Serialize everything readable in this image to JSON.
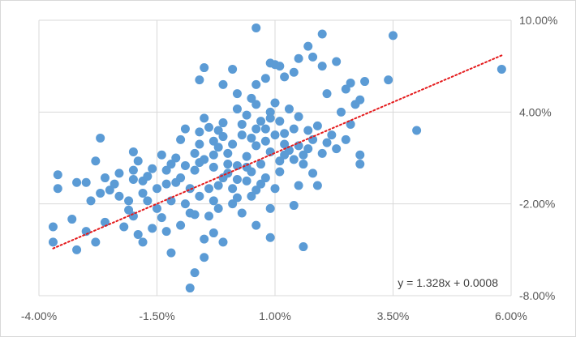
{
  "chart_data": {
    "type": "scatter",
    "title": "",
    "xlabel": "",
    "ylabel": "",
    "xlim": [
      -4.0,
      6.0
    ],
    "ylim": [
      -8.0,
      10.0
    ],
    "x_ticks": [
      -4.0,
      -1.5,
      1.0,
      3.5,
      6.0
    ],
    "y_ticks": [
      -8.0,
      -2.0,
      4.0,
      10.0
    ],
    "x_tick_labels": [
      "-4.00%",
      "-1.50%",
      "1.00%",
      "3.50%",
      "6.00%"
    ],
    "y_tick_labels": [
      "-8.00%",
      "-2.00%",
      "4.00%",
      "10.00%"
    ],
    "y_axis_position": "right",
    "grid": true,
    "legend": "none",
    "marker_color": "#5b9bd5",
    "trendline": {
      "slope": 1.328,
      "intercept": 0.0008,
      "style": "dotted",
      "color": "#e41a1c",
      "x_range": [
        -3.7,
        5.8
      ],
      "equation_label": "y = 1.328x + 0.0008"
    },
    "points": [
      [
        0.6,
        9.5
      ],
      [
        3.5,
        9.0
      ],
      [
        2.0,
        9.1
      ],
      [
        1.7,
        8.3
      ],
      [
        5.8,
        6.8
      ],
      [
        3.4,
        6.1
      ],
      [
        1.5,
        7.5
      ],
      [
        1.8,
        7.6
      ],
      [
        2.3,
        7.3
      ],
      [
        1.1,
        7.0
      ],
      [
        0.9,
        7.2
      ],
      [
        1.0,
        7.1
      ],
      [
        1.4,
        6.6
      ],
      [
        2.0,
        7.0
      ],
      [
        0.1,
        6.8
      ],
      [
        -0.5,
        6.9
      ],
      [
        0.6,
        5.8
      ],
      [
        1.2,
        6.3
      ],
      [
        -0.1,
        5.8
      ],
      [
        0.8,
        6.2
      ],
      [
        -0.6,
        6.1
      ],
      [
        2.6,
        5.9
      ],
      [
        2.9,
        6.0
      ],
      [
        2.1,
        5.2
      ],
      [
        2.5,
        5.5
      ],
      [
        4.0,
        2.8
      ],
      [
        2.8,
        4.8
      ],
      [
        2.7,
        4.5
      ],
      [
        2.4,
        4.0
      ],
      [
        2.6,
        3.2
      ],
      [
        2.5,
        2.2
      ],
      [
        2.2,
        2.5
      ],
      [
        2.8,
        1.2
      ],
      [
        2.0,
        1.3
      ],
      [
        2.8,
        0.6
      ],
      [
        1.8,
        0.0
      ],
      [
        1.9,
        -0.8
      ],
      [
        1.5,
        -0.8
      ],
      [
        1.4,
        -2.1
      ],
      [
        1.6,
        -4.8
      ],
      [
        0.9,
        -2.3
      ],
      [
        0.5,
        -1.5
      ],
      [
        0.1,
        -2.0
      ],
      [
        -0.2,
        -2.3
      ],
      [
        0.6,
        -3.4
      ],
      [
        0.9,
        -4.2
      ],
      [
        -0.5,
        -4.3
      ],
      [
        -0.1,
        -4.5
      ],
      [
        -0.3,
        -3.9
      ],
      [
        -0.5,
        -5.5
      ],
      [
        -0.7,
        -6.5
      ],
      [
        -0.8,
        -7.5
      ],
      [
        -1.2,
        -5.2
      ],
      [
        -1.3,
        -3.8
      ],
      [
        -1.0,
        -3.4
      ],
      [
        -0.7,
        -2.7
      ],
      [
        -1.4,
        -2.9
      ],
      [
        -1.6,
        -3.6
      ],
      [
        -1.8,
        -4.5
      ],
      [
        -1.9,
        -4.0
      ],
      [
        -2.0,
        -2.8
      ],
      [
        -2.2,
        -3.5
      ],
      [
        -2.6,
        -3.2
      ],
      [
        -2.8,
        -4.5
      ],
      [
        -3.2,
        -5.0
      ],
      [
        -3.0,
        -3.8
      ],
      [
        -3.3,
        -3.0
      ],
      [
        -3.7,
        -4.5
      ],
      [
        -3.7,
        -3.5
      ],
      [
        -2.9,
        -1.8
      ],
      [
        -2.5,
        -1.1
      ],
      [
        -3.0,
        -0.6
      ],
      [
        -3.2,
        -0.6
      ],
      [
        -3.6,
        -1.0
      ],
      [
        -3.6,
        -0.1
      ],
      [
        -2.7,
        -1.3
      ],
      [
        -2.3,
        -1.5
      ],
      [
        -2.1,
        -1.8
      ],
      [
        -2.4,
        -0.7
      ],
      [
        -2.6,
        -0.3
      ],
      [
        -2.0,
        -0.4
      ],
      [
        -2.8,
        0.8
      ],
      [
        -2.3,
        -0.0
      ],
      [
        -2.7,
        2.3
      ],
      [
        -2.0,
        1.4
      ],
      [
        -1.9,
        0.8
      ],
      [
        -2.0,
        0.2
      ],
      [
        -1.8,
        -0.5
      ],
      [
        -1.5,
        -1.0
      ],
      [
        -1.3,
        0.2
      ],
      [
        -1.1,
        1.0
      ],
      [
        -1.1,
        -0.6
      ],
      [
        -0.9,
        0.5
      ],
      [
        -0.7,
        1.3
      ],
      [
        -0.6,
        1.9
      ],
      [
        -0.6,
        2.7
      ],
      [
        -0.9,
        2.9
      ],
      [
        -0.4,
        3.0
      ],
      [
        -0.3,
        2.1
      ],
      [
        -0.1,
        3.3
      ],
      [
        0.2,
        4.2
      ],
      [
        0.4,
        3.8
      ],
      [
        0.5,
        4.9
      ],
      [
        0.2,
        5.2
      ],
      [
        0.6,
        4.5
      ],
      [
        0.9,
        4.0
      ],
      [
        1.1,
        3.4
      ],
      [
        1.3,
        4.2
      ],
      [
        1.5,
        3.7
      ],
      [
        1.7,
        2.8
      ],
      [
        1.2,
        2.6
      ],
      [
        0.8,
        2.9
      ],
      [
        0.6,
        1.8
      ],
      [
        0.3,
        2.5
      ],
      [
        0.0,
        1.3
      ],
      [
        0.2,
        0.5
      ],
      [
        -0.1,
        -0.3
      ],
      [
        -0.3,
        0.4
      ],
      [
        0.1,
        -1.0
      ],
      [
        0.4,
        -0.5
      ],
      [
        0.7,
        0.6
      ],
      [
        0.9,
        1.4
      ],
      [
        1.1,
        0.1
      ],
      [
        1.3,
        1.5
      ],
      [
        1.5,
        1.8
      ],
      [
        1.8,
        2.2
      ],
      [
        1.9,
        3.1
      ],
      [
        1.0,
        -1.0
      ],
      [
        0.7,
        -0.7
      ],
      [
        -0.6,
        -1.5
      ],
      [
        -0.9,
        -2.0
      ],
      [
        -1.2,
        -1.8
      ],
      [
        -0.4,
        -1.0
      ],
      [
        -0.8,
        -1.0
      ],
      [
        0.0,
        0.6
      ],
      [
        -0.2,
        1.7
      ],
      [
        0.4,
        1.1
      ],
      [
        0.5,
        0.1
      ],
      [
        0.8,
        2.1
      ],
      [
        1.2,
        1.9
      ],
      [
        1.6,
        0.6
      ],
      [
        1.4,
        2.9
      ],
      [
        2.1,
        2.0
      ],
      [
        2.3,
        1.6
      ],
      [
        1.0,
        4.6
      ],
      [
        0.3,
        3.2
      ],
      [
        -0.5,
        3.6
      ],
      [
        -1.0,
        2.2
      ],
      [
        -1.4,
        1.2
      ],
      [
        -1.6,
        0.3
      ],
      [
        -1.7,
        -0.2
      ],
      [
        -1.2,
        0.6
      ],
      [
        -0.5,
        0.9
      ],
      [
        -0.2,
        -0.8
      ],
      [
        0.2,
        -1.6
      ],
      [
        0.6,
        -1.1
      ],
      [
        -0.1,
        2.4
      ],
      [
        0.1,
        1.9
      ],
      [
        0.5,
        2.3
      ],
      [
        0.7,
        3.4
      ],
      [
        1.0,
        2.5
      ],
      [
        1.2,
        1.2
      ],
      [
        1.4,
        0.9
      ],
      [
        1.6,
        1.2
      ],
      [
        -0.3,
        1.2
      ],
      [
        -0.7,
        0.2
      ],
      [
        -1.0,
        -0.3
      ],
      [
        -0.8,
        -2.6
      ],
      [
        -1.5,
        -2.3
      ],
      [
        -0.4,
        -2.8
      ],
      [
        0.3,
        -2.6
      ],
      [
        -0.6,
        0.7
      ],
      [
        0.0,
        0.0
      ],
      [
        0.4,
        0.4
      ],
      [
        0.8,
        -0.3
      ],
      [
        1.1,
        0.8
      ],
      [
        1.7,
        1.6
      ],
      [
        0.9,
        3.6
      ],
      [
        0.6,
        2.9
      ],
      [
        -0.2,
        2.8
      ],
      [
        -1.3,
        -0.7
      ],
      [
        -1.8,
        -1.3
      ],
      [
        -2.1,
        -2.4
      ],
      [
        -1.7,
        -1.8
      ],
      [
        -0.3,
        -1.8
      ],
      [
        0.2,
        -0.4
      ]
    ]
  }
}
